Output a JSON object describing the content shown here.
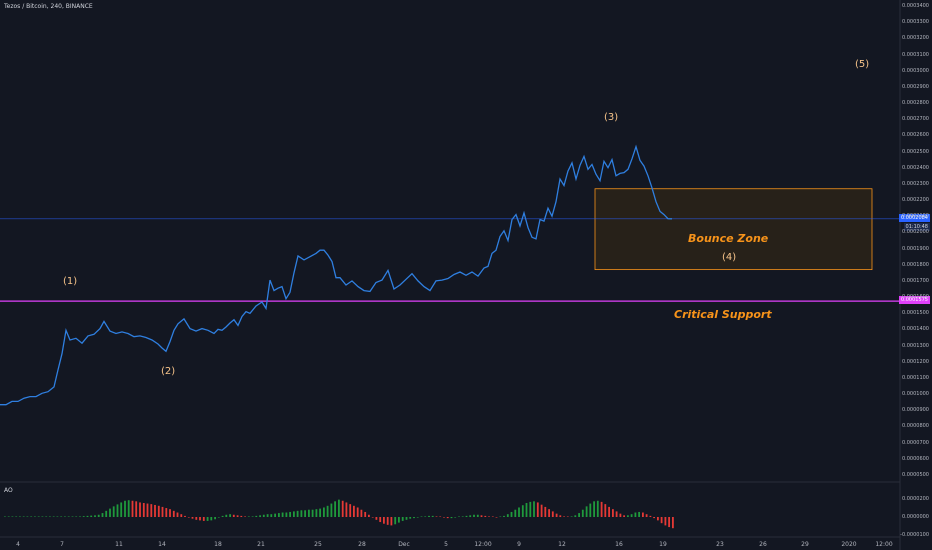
{
  "header": {
    "title": "Tezos / Bitcoin, 240, BINANCE"
  },
  "indicator": {
    "label": "AO"
  },
  "annotations": {
    "wave1": "(1)",
    "wave2": "(2)",
    "wave3": "(3)",
    "wave4": "(4)",
    "wave5": "(5)",
    "bounce_zone": "Bounce Zone",
    "critical_support": "Critical Support"
  },
  "price_tags": {
    "current_price": "0.0002084",
    "countdown": "01:10:48",
    "support_price": "0.0001575"
  },
  "colors": {
    "background": "#131722",
    "price_line": "#2f7fe0",
    "support_line": "#e040fb",
    "zone_border": "#f7931a",
    "zone_fill": "#2a2218",
    "ao_up": "#26a69a",
    "ao_green": "#1f9a3c",
    "ao_down": "#e53935",
    "current_line": "#2962ff"
  },
  "chart_data": {
    "type": "line",
    "title": "Tezos / Bitcoin, 240, BINANCE",
    "y_axis": {
      "ticks": [
        "0.0003400",
        "0.0003300",
        "0.0003200",
        "0.0003100",
        "0.0003000",
        "0.0002900",
        "0.0002800",
        "0.0002700",
        "0.0002600",
        "0.0002500",
        "0.0002400",
        "0.0002300",
        "0.0002200",
        "0.0002100",
        "0.0002000",
        "0.0001900",
        "0.0001800",
        "0.0001700",
        "0.0001600",
        "0.0001500",
        "0.0001400",
        "0.0001300",
        "0.0001200",
        "0.0001100",
        "0.0001000",
        "0.0000900",
        "0.0000800",
        "0.0000700",
        "0.0000600",
        "0.0000500"
      ],
      "range": [
        4e-05,
        0.000344
      ]
    },
    "x_axis": {
      "ticks": [
        "4",
        "7",
        "11",
        "14",
        "18",
        "21",
        "25",
        "28",
        "Dec",
        "5",
        "12:00",
        "9",
        "12",
        "16",
        "19",
        "23",
        "26",
        "29",
        "2020",
        "12:00"
      ]
    },
    "series": [
      {
        "x": [
          0,
          6,
          12,
          18,
          24,
          30,
          36,
          42,
          48,
          54,
          58,
          62,
          66,
          70,
          76,
          82,
          88,
          94,
          100,
          104,
          110,
          116,
          122,
          128,
          134,
          140,
          146,
          152,
          158,
          162,
          166,
          170,
          174,
          178,
          184,
          190,
          196,
          202,
          208,
          214,
          218,
          222,
          226,
          230,
          234,
          238,
          242,
          246,
          250,
          256,
          262,
          266,
          270,
          274,
          278,
          282,
          286,
          290,
          294,
          298,
          304,
          310,
          316,
          320,
          324,
          328,
          332,
          336,
          340,
          346,
          352,
          358,
          364,
          370,
          376,
          382,
          388,
          394,
          400,
          406,
          412,
          418,
          424,
          430,
          436,
          442,
          448,
          454,
          460,
          466,
          472,
          478,
          484,
          488,
          492,
          496,
          500,
          504,
          508,
          512,
          516,
          520,
          524,
          528,
          532,
          536,
          540,
          544,
          548,
          552,
          556,
          560,
          564,
          568,
          572,
          576,
          580,
          584,
          588,
          592,
          596,
          600,
          604,
          608,
          612,
          616,
          620,
          624,
          628,
          632,
          636,
          640,
          644,
          648,
          652,
          656,
          660,
          664,
          668,
          672
        ],
        "y": [
          9.35e-05,
          9.35e-05,
          9.55e-05,
          9.55e-05,
          9.75e-05,
          9.85e-05,
          9.85e-05,
          0.0001005,
          0.0001015,
          0.0001045,
          0.000115,
          0.000125,
          0.0001395,
          0.0001335,
          0.0001345,
          0.0001315,
          0.000136,
          0.000137,
          0.0001405,
          0.000145,
          0.000139,
          0.0001375,
          0.0001385,
          0.0001375,
          0.0001355,
          0.000136,
          0.000135,
          0.0001335,
          0.000131,
          0.0001285,
          0.0001265,
          0.0001325,
          0.0001395,
          0.0001435,
          0.0001465,
          0.0001405,
          0.000139,
          0.0001405,
          0.0001395,
          0.0001375,
          0.00014,
          0.0001395,
          0.0001415,
          0.000144,
          0.000146,
          0.0001425,
          0.000148,
          0.000151,
          0.00015,
          0.0001545,
          0.000157,
          0.000153,
          0.0001705,
          0.000164,
          0.0001655,
          0.0001665,
          0.000159,
          0.000163,
          0.000175,
          0.0001855,
          0.000183,
          0.000185,
          0.000187,
          0.000189,
          0.000189,
          0.000186,
          0.000182,
          0.000172,
          0.000172,
          0.0001675,
          0.00017,
          0.0001665,
          0.000164,
          0.0001635,
          0.000169,
          0.0001705,
          0.0001765,
          0.000165,
          0.0001675,
          0.000171,
          0.0001745,
          0.00017,
          0.0001665,
          0.000164,
          0.00017,
          0.0001705,
          0.0001715,
          0.000174,
          0.0001755,
          0.0001735,
          0.0001755,
          0.000173,
          0.000178,
          0.000179,
          0.000187,
          0.000189,
          0.0001975,
          0.000201,
          0.000195,
          0.000208,
          0.000211,
          0.000204,
          0.000212,
          0.000203,
          0.000197,
          0.000196,
          0.000208,
          0.000207,
          0.000215,
          0.00021,
          0.000219,
          0.000233,
          0.000229,
          0.000238,
          0.000243,
          0.000233,
          0.0002415,
          0.000247,
          0.000239,
          0.000242,
          0.000236,
          0.000232,
          0.000244,
          0.00024,
          0.000245,
          0.000235,
          0.0002365,
          0.000237,
          0.000239,
          0.0002455,
          0.000253,
          0.0002445,
          0.000241,
          0.000235,
          0.0002275,
          0.000219,
          0.000213,
          0.000211,
          0.0002085,
          0.0002084
        ]
      }
    ],
    "ao": {
      "values": [
        0,
        0,
        0,
        0,
        0,
        0,
        0,
        0,
        0,
        0,
        0,
        0,
        0,
        0,
        0,
        0,
        0,
        0,
        0,
        0.01,
        0.02,
        0.03,
        0.04,
        0.05,
        0.06,
        0.08,
        0.14,
        0.22,
        0.3,
        0.38,
        0.45,
        0.52,
        0.58,
        0.6,
        0.58,
        0.56,
        0.52,
        0.5,
        0.48,
        0.46,
        0.43,
        0.4,
        0.36,
        0.32,
        0.28,
        0.22,
        0.16,
        0.1,
        0.04,
        -0.02,
        -0.06,
        -0.1,
        -0.12,
        -0.14,
        -0.14,
        -0.12,
        -0.08,
        -0.02,
        0.04,
        0.08,
        0.1,
        0.08,
        0.06,
        0.04,
        0.02,
        0.02,
        0.02,
        0.04,
        0.06,
        0.08,
        0.1,
        0.1,
        0.12,
        0.14,
        0.16,
        0.16,
        0.18,
        0.2,
        0.22,
        0.24,
        0.24,
        0.26,
        0.26,
        0.28,
        0.3,
        0.34,
        0.4,
        0.48,
        0.56,
        0.62,
        0.58,
        0.52,
        0.46,
        0.4,
        0.34,
        0.26,
        0.18,
        0.08,
        -0.02,
        -0.1,
        -0.18,
        -0.24,
        -0.28,
        -0.3,
        -0.26,
        -0.2,
        -0.14,
        -0.1,
        -0.06,
        -0.04,
        -0.02,
        0.0,
        0.02,
        0.04,
        0.04,
        0.02,
        0.0,
        -0.02,
        -0.04,
        -0.04,
        -0.02,
        0.0,
        0.02,
        0.04,
        0.06,
        0.08,
        0.08,
        0.06,
        0.04,
        0.02,
        0.0,
        -0.02,
        0.0,
        0.04,
        0.1,
        0.18,
        0.26,
        0.34,
        0.42,
        0.5,
        0.54,
        0.56,
        0.52,
        0.44,
        0.36,
        0.28,
        0.2,
        0.12,
        0.06,
        0.02,
        0.0,
        0.02,
        0.06,
        0.14,
        0.26,
        0.38,
        0.48,
        0.56,
        0.58,
        0.54,
        0.46,
        0.36,
        0.28,
        0.2,
        0.12,
        0.06,
        0.06,
        0.1,
        0.16,
        0.18,
        0.16,
        0.1,
        0.04,
        -0.04,
        -0.12,
        -0.22,
        -0.3,
        -0.36,
        -0.4
      ],
      "y_ticks": [
        "0.0000200",
        "0.0000000",
        "-0.0000100"
      ]
    }
  }
}
